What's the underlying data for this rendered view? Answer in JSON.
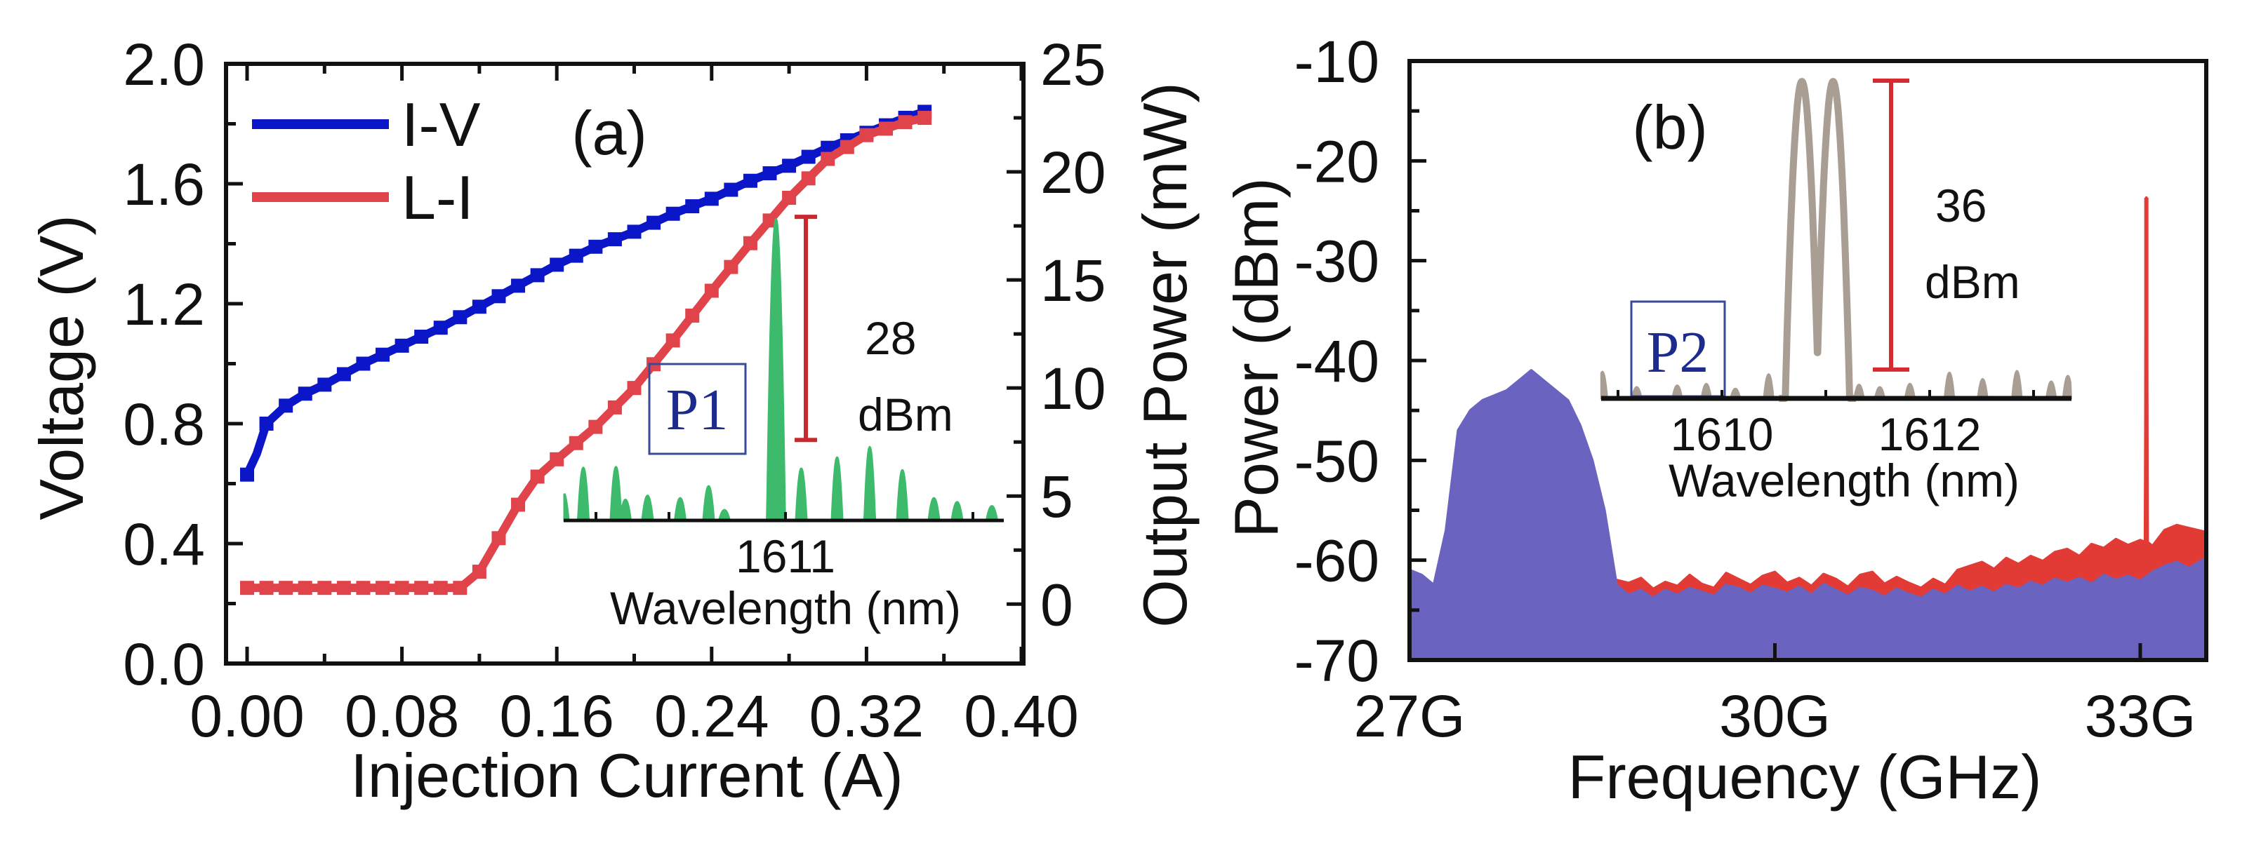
{
  "chart_data": [
    {
      "type": "line",
      "panel_label": "(a)",
      "xlabel": "Injection Current (A)",
      "ylabel": "Voltage (V)",
      "y2label": "Output Power (mW)",
      "xlim": [
        0,
        0.4
      ],
      "ylim": [
        0,
        2.0
      ],
      "y2lim": [
        -2.75,
        25
      ],
      "xticks": [
        "0.00",
        "0.08",
        "0.16",
        "0.24",
        "0.32",
        "0.40"
      ],
      "yticks": [
        "0.0",
        "0.4",
        "0.8",
        "1.2",
        "1.6",
        "2.0"
      ],
      "y2ticks": [
        "0",
        "5",
        "10",
        "15",
        "20",
        "25"
      ],
      "grid": false,
      "legend": "top-left",
      "series": [
        {
          "name": "I-V",
          "axis": "left",
          "color": "#0b16c9",
          "x": [
            0,
            0.005,
            0.01,
            0.02,
            0.03,
            0.04,
            0.06,
            0.08,
            0.1,
            0.12,
            0.14,
            0.16,
            0.18,
            0.2,
            0.22,
            0.24,
            0.26,
            0.28,
            0.3,
            0.32,
            0.34,
            0.35
          ],
          "y": [
            0.63,
            0.7,
            0.8,
            0.86,
            0.9,
            0.93,
            1.0,
            1.06,
            1.12,
            1.19,
            1.26,
            1.33,
            1.39,
            1.44,
            1.5,
            1.55,
            1.61,
            1.66,
            1.72,
            1.77,
            1.82,
            1.84
          ]
        },
        {
          "name": "L-I",
          "axis": "right",
          "color": "#e0434a",
          "x": [
            0,
            0.02,
            0.04,
            0.06,
            0.08,
            0.1,
            0.11,
            0.12,
            0.14,
            0.15,
            0.16,
            0.18,
            0.2,
            0.22,
            0.24,
            0.26,
            0.28,
            0.3,
            0.32,
            0.34,
            0.35
          ],
          "y": [
            0.75,
            0.75,
            0.75,
            0.75,
            0.75,
            0.75,
            0.75,
            1.5,
            4.6,
            5.9,
            6.7,
            8.2,
            10.0,
            12.2,
            14.5,
            16.7,
            18.8,
            20.6,
            21.7,
            22.3,
            22.5
          ]
        }
      ],
      "inset": {
        "label": "P1",
        "xlabel": "Wavelength (nm)",
        "xticks": [
          "1611"
        ],
        "xlim": [
          1608.9,
          1613.07
        ],
        "ylim": [
          -10.1,
          28
        ],
        "color": "#3dba6c",
        "peaks": [
          [
            1608.89,
            -6.6
          ],
          [
            1609.08,
            -3.5
          ],
          [
            1609.39,
            -3.4
          ],
          [
            1609.48,
            -7.5
          ],
          [
            1609.69,
            -7.0
          ],
          [
            1610.0,
            -7.3
          ],
          [
            1610.27,
            -5.8
          ],
          [
            1610.42,
            -8.8
          ],
          [
            1610.91,
            27.7
          ],
          [
            1611.15,
            -3.6
          ],
          [
            1611.49,
            -2.2
          ],
          [
            1611.8,
            -0.9
          ],
          [
            1612.11,
            -3.8
          ],
          [
            1612.41,
            -7.3
          ],
          [
            1612.63,
            -7.8
          ],
          [
            1612.96,
            -8.3
          ]
        ],
        "errorbar": {
          "from": 0,
          "to": 28,
          "value_label": "28",
          "unit_label": "dBm",
          "color": "#c8282e"
        }
      }
    },
    {
      "type": "area",
      "panel_label": "(b)",
      "xlabel": "Frequency (GHz)",
      "ylabel": "Power (dBm)",
      "xlim": [
        27,
        33.54
      ],
      "ylim": [
        -70,
        -10
      ],
      "xticks": [
        "27G",
        "30G",
        "33G"
      ],
      "yticks": [
        "-10",
        "-20",
        "-30",
        "-40",
        "-50",
        "-60",
        "-70"
      ],
      "grid": false,
      "series": [
        {
          "color": "#e23a35",
          "points": [
            [
              28.7,
              -62
            ],
            [
              28.8,
              -62.3
            ],
            [
              28.9,
              -61.8
            ],
            [
              29.0,
              -62.9
            ],
            [
              29.1,
              -62.2
            ],
            [
              29.2,
              -62.6
            ],
            [
              29.3,
              -61.5
            ],
            [
              29.4,
              -62.4
            ],
            [
              29.5,
              -62.8
            ],
            [
              29.6,
              -61.3
            ],
            [
              29.7,
              -61.9
            ],
            [
              29.8,
              -62.5
            ],
            [
              29.9,
              -61.6
            ],
            [
              30.0,
              -61.2
            ],
            [
              30.1,
              -62.3
            ],
            [
              30.2,
              -61.8
            ],
            [
              30.3,
              -62.6
            ],
            [
              30.4,
              -61.4
            ],
            [
              30.5,
              -61.9
            ],
            [
              30.6,
              -62.7
            ],
            [
              30.7,
              -61.5
            ],
            [
              30.8,
              -61.2
            ],
            [
              30.9,
              -62.4
            ],
            [
              31.0,
              -61.7
            ],
            [
              31.1,
              -62.3
            ],
            [
              31.2,
              -62.8
            ],
            [
              31.3,
              -61.9
            ],
            [
              31.4,
              -62.5
            ],
            [
              31.5,
              -61.0
            ],
            [
              31.6,
              -60.6
            ],
            [
              31.7,
              -60.2
            ],
            [
              31.8,
              -60.9
            ],
            [
              31.9,
              -59.8
            ],
            [
              32.0,
              -60.4
            ],
            [
              32.1,
              -59.6
            ],
            [
              32.2,
              -60.1
            ],
            [
              32.3,
              -59.2
            ],
            [
              32.4,
              -58.9
            ],
            [
              32.5,
              -59.6
            ],
            [
              32.6,
              -58.4
            ],
            [
              32.7,
              -58.8
            ],
            [
              32.8,
              -57.9
            ],
            [
              32.9,
              -58.5
            ],
            [
              33.0,
              -58.0
            ],
            [
              33.04,
              -58.2
            ],
            [
              33.05,
              -23.7
            ],
            [
              33.06,
              -58.2
            ],
            [
              33.1,
              -58.6
            ],
            [
              33.2,
              -57.0
            ],
            [
              33.3,
              -56.5
            ],
            [
              33.4,
              -56.8
            ],
            [
              33.54,
              -57.2
            ]
          ]
        },
        {
          "color": "#6a63bf",
          "points": [
            [
              27.0,
              -61
            ],
            [
              27.1,
              -61.5
            ],
            [
              27.2,
              -62.5
            ],
            [
              27.3,
              -57
            ],
            [
              27.4,
              -47
            ],
            [
              27.5,
              -45
            ],
            [
              27.6,
              -44
            ],
            [
              27.7,
              -43.5
            ],
            [
              27.8,
              -43
            ],
            [
              27.9,
              -42
            ],
            [
              28.0,
              -41
            ],
            [
              28.1,
              -42
            ],
            [
              28.2,
              -43
            ],
            [
              28.3,
              -44
            ],
            [
              28.4,
              -46.5
            ],
            [
              28.5,
              -50
            ],
            [
              28.6,
              -55
            ],
            [
              28.7,
              -62.5
            ],
            [
              28.8,
              -63.5
            ],
            [
              28.9,
              -63
            ],
            [
              29.0,
              -63.8
            ],
            [
              29.1,
              -63
            ],
            [
              29.2,
              -63.5
            ],
            [
              29.3,
              -62.8
            ],
            [
              29.4,
              -63.2
            ],
            [
              29.5,
              -63.6
            ],
            [
              29.6,
              -62.5
            ],
            [
              29.7,
              -62.8
            ],
            [
              29.8,
              -63.4
            ],
            [
              29.9,
              -62.6
            ],
            [
              30.0,
              -62.9
            ],
            [
              30.1,
              -63.3
            ],
            [
              30.2,
              -62.7
            ],
            [
              30.3,
              -63.5
            ],
            [
              30.4,
              -62.4
            ],
            [
              30.5,
              -63
            ],
            [
              30.6,
              -63.6
            ],
            [
              30.7,
              -62.8
            ],
            [
              30.8,
              -63.1
            ],
            [
              30.9,
              -63.7
            ],
            [
              31.0,
              -62.9
            ],
            [
              31.1,
              -63.4
            ],
            [
              31.2,
              -63.8
            ],
            [
              31.3,
              -63
            ],
            [
              31.4,
              -63.5
            ],
            [
              31.5,
              -62.6
            ],
            [
              31.6,
              -63.2
            ],
            [
              31.7,
              -62.7
            ],
            [
              31.8,
              -63.3
            ],
            [
              31.9,
              -62.5
            ],
            [
              32.0,
              -62.9
            ],
            [
              32.1,
              -62.2
            ],
            [
              32.2,
              -62.6
            ],
            [
              32.3,
              -61.9
            ],
            [
              32.4,
              -62.3
            ],
            [
              32.5,
              -61.8
            ],
            [
              32.6,
              -62.4
            ],
            [
              32.7,
              -61.5
            ],
            [
              32.8,
              -62
            ],
            [
              32.9,
              -61.6
            ],
            [
              33.0,
              -62.1
            ],
            [
              33.1,
              -61.2
            ],
            [
              33.2,
              -60.6
            ],
            [
              33.3,
              -60.2
            ],
            [
              33.4,
              -60.8
            ],
            [
              33.54,
              -59.8
            ]
          ]
        }
      ],
      "inset": {
        "label": "P2",
        "xlabel": "Wavelength (nm)",
        "xticks": [
          "1610",
          "1612"
        ],
        "xlim": [
          1608.84,
          1613.36
        ],
        "ylim": [
          -3.6,
          36
        ],
        "color": "#a89e94",
        "main_peaks": [
          [
            1610.77,
            35.9
          ],
          [
            1611.07,
            35.9
          ]
        ],
        "noise_peaks": [
          [
            1608.85,
            -0.3
          ],
          [
            1609.18,
            -2.2
          ],
          [
            1609.57,
            -2.0
          ],
          [
            1609.85,
            -1.8
          ],
          [
            1610.13,
            -2.4
          ],
          [
            1610.45,
            -0.6
          ],
          [
            1611.32,
            -1.9
          ],
          [
            1611.52,
            -2.2
          ],
          [
            1611.81,
            -1.8
          ],
          [
            1612.19,
            -0.4
          ],
          [
            1612.51,
            -1.2
          ],
          [
            1612.84,
            -0.2
          ],
          [
            1613.17,
            -1.5
          ],
          [
            1613.33,
            -0.8
          ]
        ],
        "errorbar": {
          "from": 0,
          "to": 36,
          "value_label": "36",
          "unit_label": "dBm",
          "color": "#d42a30"
        }
      }
    }
  ]
}
